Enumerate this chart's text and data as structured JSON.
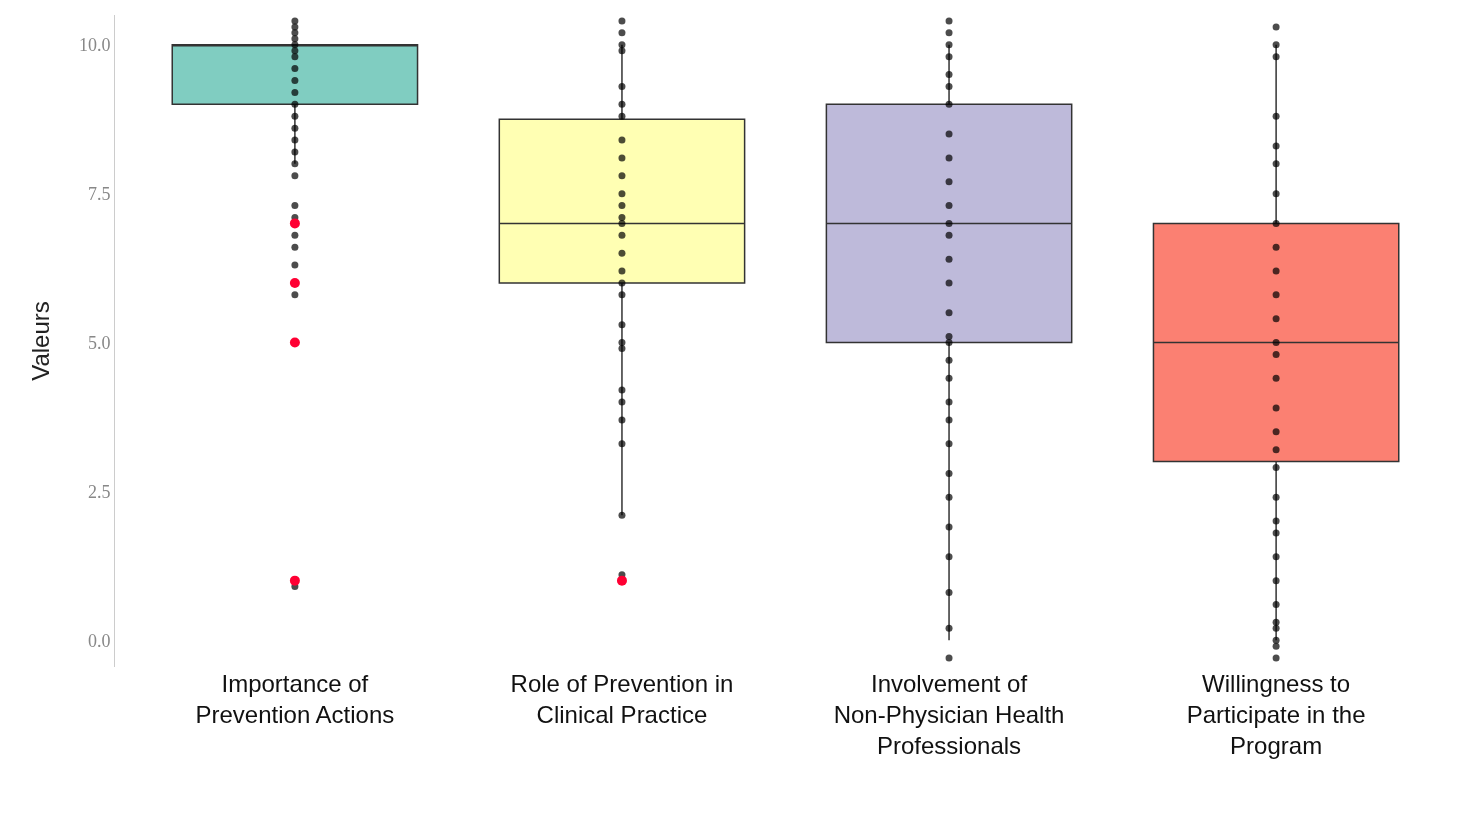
{
  "chart_data": {
    "type": "box",
    "ylabel": "Valeurs",
    "categories": [
      "Importance of Prevention Actions",
      "Role of Prevention in Clinical Practice",
      "Involvement of Non-Physician Health Professionals",
      "Willingness to Participate in the Program"
    ],
    "ylim": [
      -0.45,
      10.5
    ],
    "yticks": [
      {
        "value": 0,
        "label": "0.0"
      },
      {
        "value": 2.5,
        "label": "2.5"
      },
      {
        "value": 5,
        "label": "5.0"
      },
      {
        "value": 7.5,
        "label": "7.5"
      },
      {
        "value": 10,
        "label": "10.0"
      }
    ],
    "grid": false,
    "series": [
      {
        "color": "#ff0033",
        "colors": [
          "#80cdc1",
          "#ffffb3",
          "#bebada",
          "#fb8072"
        ],
        "boxes": [
          {
            "low": 8,
            "q1": 9,
            "median": 10,
            "q3": 10,
            "high": 10,
            "outliers": [
              7,
              6,
              5,
              1
            ]
          },
          {
            "low": 2.1,
            "q1": 6,
            "median": 7,
            "q3": 8.75,
            "high": 10,
            "outliers": [
              1
            ]
          },
          {
            "low": 0,
            "q1": 5,
            "median": 7,
            "q3": 9,
            "high": 10
          },
          {
            "low": 0,
            "q1": 3,
            "median": 5,
            "q3": 7,
            "high": 10
          }
        ]
      },
      {
        "type": "scatter",
        "color": "#000000",
        "marker": "circle",
        "x": [
          "Importance of Prevention Actions",
          "Importance of Prevention Actions",
          "Importance of Prevention Actions",
          "Importance of Prevention Actions",
          "Importance of Prevention Actions",
          "Importance of Prevention Actions",
          "Importance of Prevention Actions",
          "Importance of Prevention Actions",
          "Importance of Prevention Actions",
          "Importance of Prevention Actions",
          "Importance of Prevention Actions",
          "Importance of Prevention Actions",
          "Importance of Prevention Actions",
          "Importance of Prevention Actions",
          "Importance of Prevention Actions",
          "Importance of Prevention Actions",
          "Importance of Prevention Actions",
          "Importance of Prevention Actions",
          "Importance of Prevention Actions",
          "Importance of Prevention Actions",
          "Importance of Prevention Actions",
          "Importance of Prevention Actions",
          "Importance of Prevention Actions",
          "Importance of Prevention Actions",
          "Role of Prevention in Clinical Practice",
          "Role of Prevention in Clinical Practice",
          "Role of Prevention in Clinical Practice",
          "Role of Prevention in Clinical Practice",
          "Role of Prevention in Clinical Practice",
          "Role of Prevention in Clinical Practice",
          "Role of Prevention in Clinical Practice",
          "Role of Prevention in Clinical Practice",
          "Role of Prevention in Clinical Practice",
          "Role of Prevention in Clinical Practice",
          "Role of Prevention in Clinical Practice",
          "Role of Prevention in Clinical Practice",
          "Role of Prevention in Clinical Practice",
          "Role of Prevention in Clinical Practice",
          "Role of Prevention in Clinical Practice",
          "Role of Prevention in Clinical Practice",
          "Role of Prevention in Clinical Practice",
          "Role of Prevention in Clinical Practice",
          "Role of Prevention in Clinical Practice",
          "Role of Prevention in Clinical Practice",
          "Role of Prevention in Clinical Practice",
          "Role of Prevention in Clinical Practice",
          "Role of Prevention in Clinical Practice",
          "Role of Prevention in Clinical Practice",
          "Role of Prevention in Clinical Practice",
          "Role of Prevention in Clinical Practice",
          "Role of Prevention in Clinical Practice",
          "Role of Prevention in Clinical Practice",
          "Involvement of Non-Physician Health Professionals",
          "Involvement of Non-Physician Health Professionals",
          "Involvement of Non-Physician Health Professionals",
          "Involvement of Non-Physician Health Professionals",
          "Involvement of Non-Physician Health Professionals",
          "Involvement of Non-Physician Health Professionals",
          "Involvement of Non-Physician Health Professionals",
          "Involvement of Non-Physician Health Professionals",
          "Involvement of Non-Physician Health Professionals",
          "Involvement of Non-Physician Health Professionals",
          "Involvement of Non-Physician Health Professionals",
          "Involvement of Non-Physician Health Professionals",
          "Involvement of Non-Physician Health Professionals",
          "Involvement of Non-Physician Health Professionals",
          "Involvement of Non-Physician Health Professionals",
          "Involvement of Non-Physician Health Professionals",
          "Involvement of Non-Physician Health Professionals",
          "Involvement of Non-Physician Health Professionals",
          "Involvement of Non-Physician Health Professionals",
          "Involvement of Non-Physician Health Professionals",
          "Involvement of Non-Physician Health Professionals",
          "Involvement of Non-Physician Health Professionals",
          "Involvement of Non-Physician Health Professionals",
          "Involvement of Non-Physician Health Professionals",
          "Involvement of Non-Physician Health Professionals",
          "Involvement of Non-Physician Health Professionals",
          "Involvement of Non-Physician Health Professionals",
          "Involvement of Non-Physician Health Professionals",
          "Involvement of Non-Physician Health Professionals",
          "Involvement of Non-Physician Health Professionals",
          "Willingness to Participate in the Program",
          "Willingness to Participate in the Program",
          "Willingness to Participate in the Program",
          "Willingness to Participate in the Program",
          "Willingness to Participate in the Program",
          "Willingness to Participate in the Program",
          "Willingness to Participate in the Program",
          "Willingness to Participate in the Program",
          "Willingness to Participate in the Program",
          "Willingness to Participate in the Program",
          "Willingness to Participate in the Program",
          "Willingness to Participate in the Program",
          "Willingness to Participate in the Program",
          "Willingness to Participate in the Program",
          "Willingness to Participate in the Program",
          "Willingness to Participate in the Program",
          "Willingness to Participate in the Program",
          "Willingness to Participate in the Program",
          "Willingness to Participate in the Program",
          "Willingness to Participate in the Program",
          "Willingness to Participate in the Program",
          "Willingness to Participate in the Program",
          "Willingness to Participate in the Program",
          "Willingness to Participate in the Program",
          "Willingness to Participate in the Program",
          "Willingness to Participate in the Program",
          "Willingness to Participate in the Program",
          "Willingness to Participate in the Program",
          "Willingness to Participate in the Program",
          "Willingness to Participate in the Program"
        ],
        "values": [
          10.4,
          10.3,
          10.2,
          10.1,
          10,
          9.9,
          9.8,
          9.6,
          9.4,
          9.2,
          9,
          8.8,
          8.6,
          8.4,
          8.2,
          8,
          7.8,
          7.3,
          7.1,
          6.8,
          6.6,
          6.3,
          5.8,
          0.9,
          10.4,
          10.2,
          10,
          9.9,
          9.3,
          9,
          8.8,
          8.4,
          8.1,
          7.8,
          7.5,
          7.3,
          7.1,
          7,
          6.8,
          6.5,
          6.2,
          6,
          5.8,
          5.3,
          5,
          4.9,
          4.2,
          4,
          3.7,
          3.3,
          2.1,
          1.1,
          10.4,
          10.2,
          10,
          9.8,
          9.5,
          9.3,
          9,
          8.5,
          8.1,
          7.7,
          7.3,
          7,
          6.8,
          6.4,
          6,
          5.5,
          5.1,
          5,
          4.7,
          4.4,
          4,
          3.7,
          3.3,
          2.8,
          2.4,
          1.9,
          1.4,
          0.8,
          0.2,
          -0.3,
          10.3,
          10,
          9.8,
          8.8,
          8.3,
          8,
          7.5,
          7,
          6.6,
          6.2,
          5.8,
          5.4,
          5,
          4.8,
          4.4,
          3.9,
          3.5,
          3.2,
          2.9,
          2.4,
          2,
          1.8,
          1.4,
          1,
          0.6,
          0.3,
          0.2,
          0,
          -0.1,
          -0.3
        ]
      }
    ]
  }
}
